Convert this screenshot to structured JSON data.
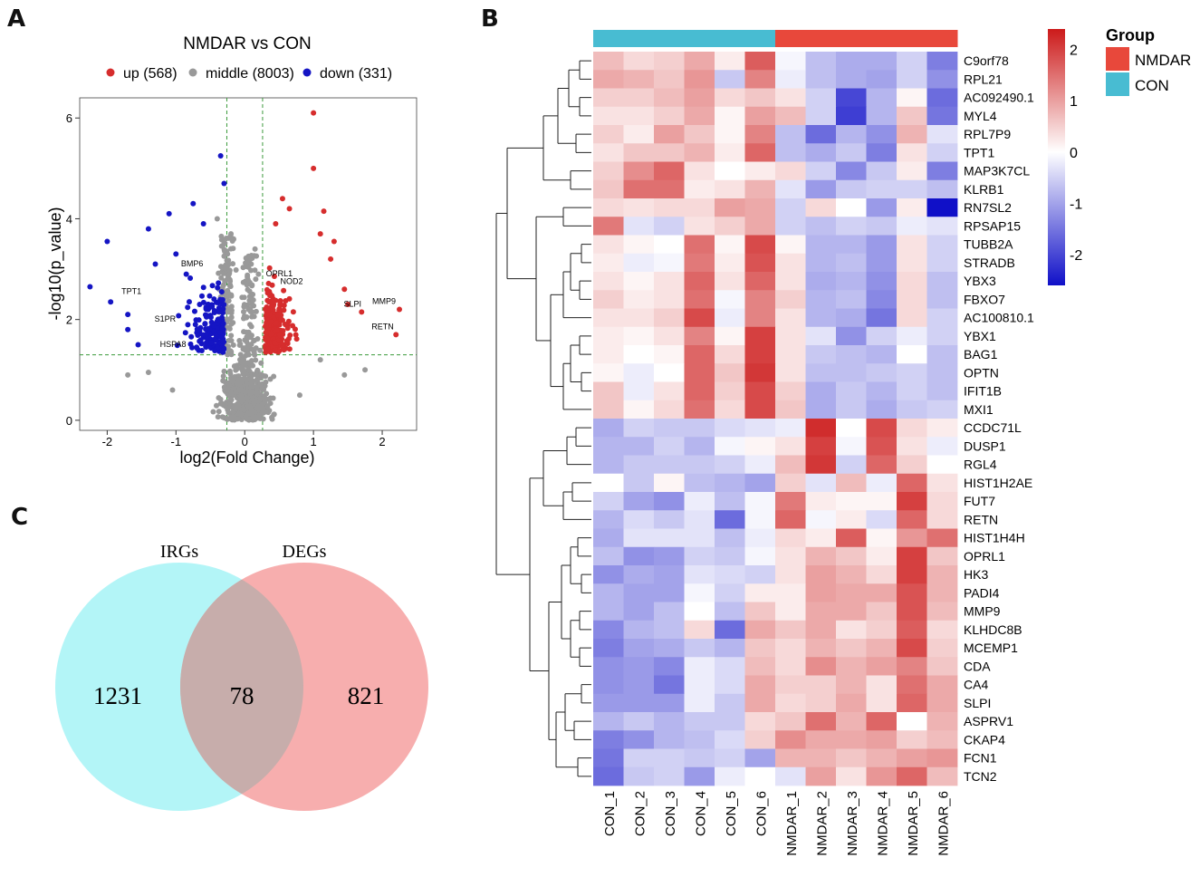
{
  "panels": {
    "a": "A",
    "b": "B",
    "c": "C"
  },
  "chart_data": [
    {
      "type": "scatter",
      "panel": "A",
      "title": "NMDAR vs CON",
      "xlabel": "log2(Fold Change)",
      "ylabel": "-log10(p_value)",
      "xlim": [
        -2.4,
        2.5
      ],
      "ylim": [
        -0.2,
        6.4
      ],
      "xticks": [
        -2,
        -1,
        0,
        1,
        2
      ],
      "yticks": [
        0,
        2,
        4,
        6
      ],
      "thresholds": {
        "fc": [
          -0.26,
          0.26
        ],
        "p": 1.3
      },
      "legend": [
        {
          "label": "up (568)",
          "color": "#d62d2d"
        },
        {
          "label": "middle (8003)",
          "color": "#999999"
        },
        {
          "label": "down (331)",
          "color": "#1515c4"
        }
      ],
      "labeled_points": [
        {
          "label": "MMP9",
          "x": 2.25,
          "y": 2.2
        },
        {
          "label": "RETN",
          "x": 2.22,
          "y": 1.7
        },
        {
          "label": "SLPI",
          "x": 1.75,
          "y": 2.15
        },
        {
          "label": "NOD2",
          "x": 0.9,
          "y": 2.6
        },
        {
          "label": "OPRL1",
          "x": 0.75,
          "y": 2.75
        },
        {
          "label": "BMP6",
          "x": -0.55,
          "y": 2.95
        },
        {
          "label": "TPT1",
          "x": -1.45,
          "y": 2.4
        },
        {
          "label": "S1PR",
          "x": -0.95,
          "y": 1.85
        },
        {
          "label": "HSPA8",
          "x": -0.8,
          "y": 1.35
        }
      ],
      "outliers": {
        "up": [
          [
            1.0,
            6.1
          ],
          [
            1.0,
            5.0
          ],
          [
            0.55,
            4.4
          ],
          [
            1.15,
            4.15
          ],
          [
            1.3,
            3.55
          ],
          [
            1.25,
            3.2
          ],
          [
            1.7,
            2.15
          ],
          [
            2.25,
            2.2
          ],
          [
            2.2,
            1.7
          ],
          [
            1.45,
            2.6
          ],
          [
            1.5,
            2.3
          ],
          [
            1.1,
            3.7
          ],
          [
            0.65,
            4.2
          ],
          [
            0.45,
            3.9
          ]
        ],
        "down": [
          [
            -0.35,
            5.25
          ],
          [
            -0.3,
            4.7
          ],
          [
            -2.25,
            2.65
          ],
          [
            -2.0,
            3.55
          ],
          [
            -1.95,
            2.35
          ],
          [
            -1.7,
            2.1
          ],
          [
            -1.4,
            3.8
          ],
          [
            -1.1,
            4.1
          ],
          [
            -0.75,
            4.3
          ],
          [
            -0.6,
            3.9
          ],
          [
            -1.3,
            3.1
          ],
          [
            -1.7,
            1.8
          ],
          [
            -1.55,
            1.5
          ],
          [
            -1.0,
            3.3
          ],
          [
            -0.85,
            2.9
          ]
        ],
        "middle": [
          [
            1.75,
            1.0
          ],
          [
            1.45,
            0.9
          ],
          [
            -1.7,
            0.9
          ],
          [
            -1.4,
            0.95
          ],
          [
            1.1,
            1.2
          ],
          [
            -0.4,
            4.0
          ],
          [
            -0.2,
            3.7
          ],
          [
            0.15,
            3.4
          ],
          [
            -0.25,
            3.3
          ],
          [
            0.2,
            2.9
          ],
          [
            0.8,
            0.5
          ],
          [
            -1.05,
            0.6
          ]
        ]
      }
    },
    {
      "type": "heatmap",
      "panel": "B",
      "columns": [
        "CON_1",
        "CON_2",
        "CON_3",
        "CON_4",
        "CON_5",
        "CON_6",
        "NMDAR_1",
        "NMDAR_2",
        "NMDAR_3",
        "NMDAR_4",
        "NMDAR_5",
        "NMDAR_6"
      ],
      "column_groups": [
        "CON",
        "CON",
        "CON",
        "CON",
        "CON",
        "CON",
        "NMDAR",
        "NMDAR",
        "NMDAR",
        "NMDAR",
        "NMDAR",
        "NMDAR"
      ],
      "rows": [
        "C9orf78",
        "RPL21",
        "AC092490.1",
        "MYL4",
        "RPL7P9",
        "TPT1",
        "MAP3K7CL",
        "KLRB1",
        "RN7SL2",
        "RPSAP15",
        "TUBB2A",
        "STRADB",
        "YBX3",
        "FBXO7",
        "AC100810.1",
        "YBX1",
        "BAG1",
        "OPTN",
        "IFIT1B",
        "MXI1",
        "CCDC71L",
        "DUSP1",
        "RGL4",
        "HIST1H2AE",
        "FUT7",
        "RETN",
        "HIST1H4H",
        "OPRL1",
        "HK3",
        "PADI4",
        "MMP9",
        "KLHDC8B",
        "MCEMP1",
        "CDA",
        "CA4",
        "SLPI",
        "ASPRV1",
        "CKAP4",
        "FCN1",
        "TCN2"
      ],
      "values": [
        [
          0.7,
          0.4,
          0.5,
          0.9,
          0.2,
          1.7,
          -0.1,
          -0.7,
          -0.9,
          -0.9,
          -0.5,
          -1.4
        ],
        [
          0.9,
          0.8,
          0.6,
          1.1,
          -0.6,
          1.3,
          -0.2,
          -0.7,
          -0.9,
          -1.0,
          -0.5,
          -1.2
        ],
        [
          0.5,
          0.5,
          0.7,
          1.0,
          0.4,
          0.6,
          0.3,
          -0.5,
          -2.0,
          -0.8,
          0.1,
          -1.6
        ],
        [
          0.3,
          0.3,
          0.5,
          0.9,
          0.1,
          1.0,
          0.7,
          -0.5,
          -2.1,
          -0.8,
          0.6,
          -1.5
        ],
        [
          0.5,
          0.2,
          1.0,
          0.6,
          0.1,
          1.3,
          -0.7,
          -1.6,
          -0.8,
          -1.2,
          0.8,
          -0.3
        ],
        [
          0.3,
          0.6,
          0.6,
          0.8,
          0.2,
          1.6,
          -0.7,
          -0.9,
          -0.6,
          -1.4,
          0.3,
          -0.5
        ],
        [
          0.5,
          1.2,
          1.6,
          0.3,
          0.0,
          0.2,
          0.4,
          -0.5,
          -1.3,
          -0.6,
          0.2,
          -1.4
        ],
        [
          0.6,
          1.5,
          1.5,
          0.2,
          0.3,
          0.8,
          -0.3,
          -1.1,
          -0.6,
          -0.5,
          -0.5,
          -0.7
        ],
        [
          0.4,
          0.3,
          0.4,
          0.4,
          1.0,
          0.9,
          -0.5,
          0.4,
          0.0,
          -1.1,
          0.2,
          -2.6
        ],
        [
          1.4,
          -0.3,
          -0.5,
          0.3,
          0.5,
          0.9,
          -0.5,
          -0.7,
          -0.5,
          -0.6,
          -0.2,
          -0.3
        ],
        [
          0.3,
          0.1,
          0.0,
          1.5,
          0.1,
          1.9,
          0.1,
          -0.8,
          -0.8,
          -1.1,
          0.3,
          -0.5
        ],
        [
          0.2,
          -0.2,
          -0.1,
          1.4,
          0.2,
          1.8,
          0.3,
          -0.8,
          -0.7,
          -1.1,
          0.3,
          -0.5
        ],
        [
          0.3,
          0.1,
          0.3,
          1.6,
          0.3,
          1.6,
          0.3,
          -0.9,
          -0.8,
          -1.2,
          0.4,
          -0.7
        ],
        [
          0.5,
          0.2,
          0.3,
          1.5,
          -0.1,
          1.3,
          0.5,
          -0.8,
          -0.7,
          -1.3,
          0.4,
          -0.7
        ],
        [
          0.3,
          0.3,
          0.5,
          1.9,
          -0.2,
          1.3,
          0.3,
          -0.8,
          -0.9,
          -1.5,
          0.4,
          -0.5
        ],
        [
          0.2,
          0.1,
          0.3,
          1.3,
          0.1,
          2.0,
          0.3,
          -0.3,
          -1.2,
          -0.5,
          -0.2,
          -0.5
        ],
        [
          0.2,
          0.0,
          0.1,
          1.6,
          0.4,
          2.0,
          0.3,
          -0.6,
          -0.7,
          -0.8,
          0.0,
          -0.7
        ],
        [
          0.1,
          -0.2,
          0.0,
          1.6,
          0.6,
          2.1,
          0.3,
          -0.7,
          -0.7,
          -0.6,
          -0.5,
          -0.7
        ],
        [
          0.6,
          -0.2,
          0.3,
          1.6,
          0.5,
          1.9,
          0.5,
          -0.9,
          -0.6,
          -0.8,
          -0.5,
          -0.7
        ],
        [
          0.6,
          0.1,
          0.4,
          1.5,
          0.4,
          1.9,
          0.6,
          -0.9,
          -0.6,
          -0.9,
          -0.6,
          -0.5
        ],
        [
          -0.9,
          -0.5,
          -0.6,
          -0.6,
          -0.4,
          -0.3,
          -0.2,
          2.2,
          0.0,
          1.9,
          0.4,
          0.2
        ],
        [
          -0.8,
          -0.8,
          -0.5,
          -0.8,
          -0.1,
          0.1,
          0.3,
          2.0,
          -0.1,
          1.8,
          0.3,
          -0.2
        ],
        [
          -0.8,
          -0.6,
          -0.6,
          -0.6,
          -0.5,
          -0.2,
          0.7,
          2.1,
          -0.5,
          1.6,
          0.5,
          0.0
        ],
        [
          0.0,
          -0.6,
          0.1,
          -0.7,
          -0.8,
          -1.0,
          0.5,
          -0.3,
          0.7,
          -0.2,
          1.6,
          0.3
        ],
        [
          -0.5,
          -1.0,
          -1.2,
          -0.2,
          -0.7,
          -0.1,
          1.4,
          0.2,
          0.1,
          0.1,
          2.0,
          0.4
        ],
        [
          -0.8,
          -0.4,
          -0.6,
          -0.3,
          -1.6,
          -0.1,
          1.6,
          -0.1,
          0.2,
          -0.4,
          1.6,
          0.4
        ],
        [
          -0.9,
          -0.3,
          -0.3,
          -0.3,
          -0.7,
          -0.2,
          0.4,
          0.2,
          1.7,
          0.1,
          1.1,
          1.5
        ],
        [
          -0.7,
          -1.2,
          -1.1,
          -0.5,
          -0.6,
          -0.1,
          0.3,
          0.8,
          0.6,
          0.2,
          2.0,
          0.6
        ],
        [
          -1.2,
          -0.9,
          -1.0,
          -0.3,
          -0.4,
          -0.5,
          0.3,
          1.0,
          0.8,
          0.4,
          2.0,
          0.8
        ],
        [
          -0.8,
          -1.0,
          -1.0,
          -0.1,
          -0.5,
          0.2,
          0.2,
          1.0,
          0.9,
          0.9,
          1.8,
          0.8
        ],
        [
          -0.8,
          -1.0,
          -0.7,
          0.0,
          -0.7,
          0.6,
          0.2,
          0.9,
          0.9,
          0.6,
          1.8,
          0.7
        ],
        [
          -1.3,
          -0.8,
          -0.7,
          0.4,
          -1.6,
          0.9,
          0.6,
          0.9,
          0.3,
          0.5,
          1.7,
          0.4
        ],
        [
          -1.4,
          -1.0,
          -0.9,
          -0.6,
          -0.8,
          0.6,
          0.4,
          0.8,
          0.6,
          0.8,
          1.9,
          0.5
        ],
        [
          -1.2,
          -1.1,
          -1.3,
          -0.2,
          -0.4,
          0.7,
          0.4,
          1.2,
          0.8,
          1.0,
          1.3,
          0.6
        ],
        [
          -1.2,
          -1.1,
          -1.5,
          -0.2,
          -0.4,
          0.9,
          0.5,
          0.5,
          0.8,
          0.3,
          1.5,
          0.9
        ],
        [
          -1.1,
          -1.1,
          -1.1,
          -0.2,
          -0.6,
          0.9,
          0.4,
          0.5,
          0.9,
          0.3,
          1.6,
          0.9
        ],
        [
          -0.8,
          -0.6,
          -0.8,
          -0.6,
          -0.6,
          0.4,
          0.6,
          1.5,
          0.8,
          1.6,
          0.0,
          0.8
        ],
        [
          -1.4,
          -1.2,
          -0.8,
          -0.7,
          -0.4,
          0.5,
          1.2,
          0.9,
          0.9,
          1.0,
          0.5,
          0.7
        ],
        [
          -1.5,
          -0.5,
          -0.5,
          -0.6,
          -0.5,
          -1.0,
          0.8,
          0.8,
          0.6,
          0.8,
          1.0,
          1.1
        ],
        [
          -1.6,
          -0.6,
          -0.5,
          -1.1,
          -0.2,
          0.0,
          -0.3,
          1.0,
          0.3,
          1.1,
          1.6,
          0.7
        ]
      ],
      "colorbar": {
        "ticks": [
          2,
          1,
          0,
          -1,
          -2
        ],
        "range": [
          -2.6,
          2.4
        ],
        "low": "#1010c8",
        "mid": "#ffffff",
        "high": "#cc1a1a"
      },
      "legend_title": "Group",
      "legend": [
        {
          "label": "NMDAR",
          "color": "#e8483b"
        },
        {
          "label": "CON",
          "color": "#48bcd2"
        }
      ]
    },
    {
      "type": "venn",
      "panel": "C",
      "sets": [
        {
          "label": "IRGs",
          "only": 1231,
          "color": "#b3f5f7"
        },
        {
          "label": "DEGs",
          "only": 821,
          "color": "#f7aeae"
        }
      ],
      "intersection": 78,
      "intersection_color": "#c7adab"
    }
  ]
}
